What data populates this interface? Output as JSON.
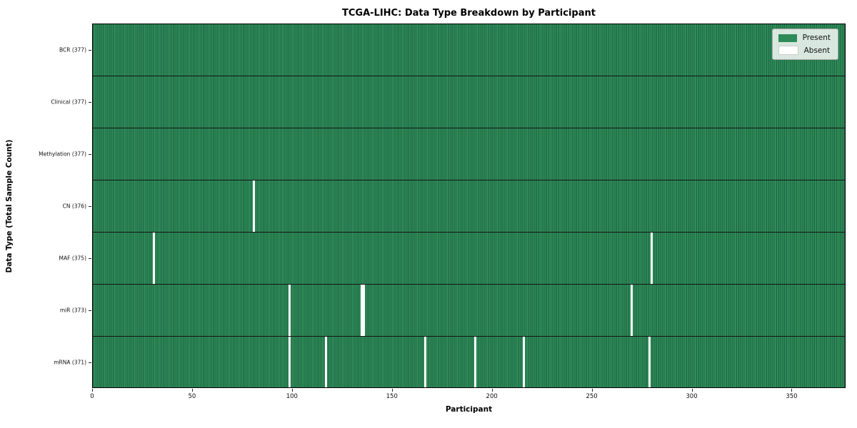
{
  "chart_data": {
    "type": "heatmap",
    "title": "TCGA-LIHC: Data Type Breakdown by Participant",
    "xlabel": "Participant",
    "ylabel": "Data Type (Total Sample Count)",
    "xlim": [
      0,
      377
    ],
    "x_ticks": [
      0,
      50,
      100,
      150,
      200,
      250,
      300,
      350
    ],
    "grid": "cell-edges",
    "legend_position": "upper-right",
    "legend": [
      {
        "label": "Present",
        "color": "#2e8b57"
      },
      {
        "label": "Absent",
        "color": "#ffffff"
      }
    ],
    "rows": [
      {
        "label": "BCR (377)",
        "data_type": "BCR",
        "present_count": 377,
        "absent_participants": []
      },
      {
        "label": "Clinical (377)",
        "data_type": "Clinical",
        "present_count": 377,
        "absent_participants": []
      },
      {
        "label": "Methylation (377)",
        "data_type": "Methylation",
        "present_count": 377,
        "absent_participants": []
      },
      {
        "label": "CN (376)",
        "data_type": "CN",
        "present_count": 376,
        "absent_participants": [
          80
        ]
      },
      {
        "label": "MAF (375)",
        "data_type": "MAF",
        "present_count": 375,
        "absent_participants": [
          30,
          279
        ]
      },
      {
        "label": "miR (373)",
        "data_type": "miR",
        "present_count": 373,
        "absent_participants": [
          98,
          134,
          135,
          269
        ]
      },
      {
        "label": "mRNA (371)",
        "data_type": "mRNA",
        "present_count": 371,
        "absent_participants": [
          98,
          116,
          166,
          191,
          215,
          278
        ]
      }
    ],
    "colors": {
      "present": "#2e8b57",
      "present_edge": "#1e6343",
      "absent": "#ffffff",
      "row_divider": "#141414",
      "plot_border": "#000000"
    }
  }
}
